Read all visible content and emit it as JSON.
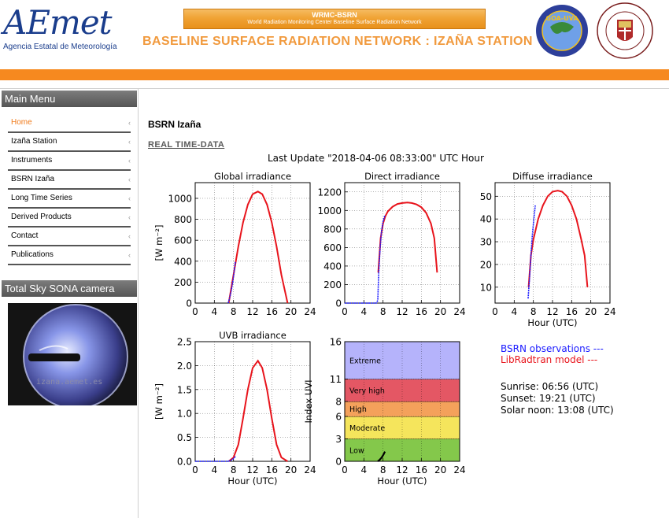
{
  "header": {
    "logo_text": "AEmet",
    "logo_subtitle": "Agencia Estatal de Meteorología",
    "banner_title": "WRMC-BSRN",
    "banner_subtitle": "World Radiation Monitoring Center  Baseline Surface Radiation Network",
    "site_title": "BASELINE SURFACE RADIATION NETWORK : IZAÑA STATION",
    "seal1_text": "GOA-UVA",
    "seal2_text": "SAPIENTIA AEDIFICAVIT SIBI DOMUM"
  },
  "sidebar": {
    "menu_title": "Main Menu",
    "items": [
      {
        "label": "Home",
        "active": true
      },
      {
        "label": "Izaña Station"
      },
      {
        "label": "Instruments"
      },
      {
        "label": "BSRN Izaña"
      },
      {
        "label": "Long Time Series"
      },
      {
        "label": "Derived Products"
      },
      {
        "label": "Contact"
      },
      {
        "label": "Publications"
      }
    ],
    "arrow": "‹",
    "camera_title": "Total Sky SONA camera",
    "camera_watermark": "izana.aemet.es"
  },
  "main": {
    "page_title": "BSRN Izaña",
    "realtime_link": "REAL TIME-DATA",
    "last_update": "Last Update \"2018-04-06 08:33:00\" UTC Hour"
  },
  "legend": {
    "observations": "BSRN observations ---",
    "model": "LibRadtran model ---"
  },
  "sun": {
    "sunrise": "Sunrise: 06:56 (UTC)",
    "sunset": "Sunset: 19:21 (UTC)",
    "solar_noon": "Solar noon: 13:08 (UTC)"
  },
  "colors": {
    "observations": "#1a1aff",
    "model": "#e8141c",
    "accent": "#f6891f"
  },
  "chart_data": [
    {
      "type": "line",
      "title": "Global irradiance",
      "xlabel": "",
      "ylabel": "[W m⁻²]",
      "xlim": [
        0,
        24
      ],
      "ylim": [
        0,
        1150
      ],
      "xticks": [
        0,
        4,
        8,
        12,
        16,
        20,
        24
      ],
      "yticks": [
        0,
        200,
        400,
        600,
        800,
        1000
      ],
      "series": [
        {
          "name": "LibRadtran model",
          "x": [
            7.0,
            8,
            9,
            10,
            11,
            12,
            13.1,
            14,
            15,
            16,
            17,
            18,
            19.3
          ],
          "y": [
            0,
            270,
            540,
            770,
            940,
            1040,
            1065,
            1040,
            940,
            770,
            540,
            270,
            0
          ]
        },
        {
          "name": "BSRN observations",
          "x": [
            6.9,
            7.2,
            7.5,
            7.8,
            8.1,
            8.4
          ],
          "y": [
            0,
            50,
            110,
            190,
            290,
            400
          ]
        }
      ]
    },
    {
      "type": "line",
      "title": "Direct irradiance",
      "xlabel": "",
      "ylabel": "",
      "xlim": [
        0,
        24
      ],
      "ylim": [
        0,
        1300
      ],
      "xticks": [
        0,
        4,
        8,
        12,
        16,
        20,
        24
      ],
      "yticks": [
        0,
        200,
        400,
        600,
        800,
        1000,
        1200
      ],
      "series": [
        {
          "name": "LibRadtran model",
          "x": [
            7.0,
            7.5,
            8.0,
            8.5,
            9,
            10,
            11,
            12,
            13.1,
            14,
            15,
            16,
            17,
            18,
            18.7,
            19.3
          ],
          "y": [
            330,
            700,
            860,
            940,
            990,
            1040,
            1070,
            1080,
            1085,
            1080,
            1065,
            1035,
            975,
            860,
            700,
            330
          ]
        },
        {
          "name": "BSRN observations",
          "x": [
            0,
            6.6,
            6.9,
            7.1,
            7.4,
            7.7,
            8.0,
            8.4
          ],
          "y": [
            0,
            0,
            30,
            330,
            600,
            780,
            880,
            950
          ]
        }
      ]
    },
    {
      "type": "line",
      "title": "Diffuse irradiance",
      "xlabel": "Hour (UTC)",
      "ylabel": "",
      "xlim": [
        0,
        24
      ],
      "ylim": [
        3,
        56
      ],
      "xticks": [
        0,
        4,
        8,
        12,
        16,
        20,
        24
      ],
      "yticks": [
        10,
        20,
        30,
        40,
        50
      ],
      "series": [
        {
          "name": "LibRadtran model",
          "x": [
            7.0,
            7.5,
            8,
            9,
            10,
            11,
            12,
            13.1,
            14,
            15,
            16,
            17,
            18,
            18.7,
            19.3
          ],
          "y": [
            10,
            24,
            31,
            40,
            46,
            50,
            52,
            52.5,
            52,
            50,
            46,
            40,
            31,
            24,
            10
          ]
        },
        {
          "name": "BSRN observations",
          "x": [
            6.9,
            7.2,
            7.5,
            7.8,
            8.1,
            8.4
          ],
          "y": [
            5,
            14,
            24,
            33,
            40,
            46
          ]
        }
      ]
    },
    {
      "type": "line",
      "title": "UVB irradiance",
      "xlabel": "Hour (UTC)",
      "ylabel": "[W m⁻²]",
      "xlim": [
        0,
        24
      ],
      "ylim": [
        0,
        2.5
      ],
      "xticks": [
        0,
        4,
        8,
        12,
        16,
        20,
        24
      ],
      "yticks": [
        0.0,
        0.5,
        1.0,
        1.5,
        2.0,
        2.5
      ],
      "series": [
        {
          "name": "LibRadtran model",
          "x": [
            7.0,
            8,
            9,
            10,
            11,
            12,
            13.1,
            14,
            15,
            16,
            17,
            18,
            19.3
          ],
          "y": [
            0,
            0.08,
            0.35,
            0.9,
            1.5,
            1.95,
            2.1,
            1.95,
            1.5,
            0.9,
            0.35,
            0.08,
            0
          ]
        },
        {
          "name": "BSRN observations",
          "x": [
            0,
            6.9,
            7.4,
            7.9,
            8.4
          ],
          "y": [
            0,
            0,
            0.02,
            0.05,
            0.1
          ]
        }
      ]
    },
    {
      "type": "line",
      "title": "",
      "xlabel": "Hour (UTC)",
      "ylabel": "Index UVI",
      "xlim": [
        0,
        24
      ],
      "ylim": [
        0,
        16
      ],
      "xticks": [
        0,
        4,
        8,
        12,
        16,
        20,
        24
      ],
      "yticks": [
        0,
        3,
        6,
        8,
        11,
        16
      ],
      "bands": [
        {
          "label": "Low",
          "from": 0,
          "to": 3,
          "color": "#84c84b"
        },
        {
          "label": "Moderate",
          "from": 3,
          "to": 6,
          "color": "#f5e55c"
        },
        {
          "label": "High",
          "from": 6,
          "to": 8,
          "color": "#f4a15b"
        },
        {
          "label": "Very high",
          "from": 8,
          "to": 11,
          "color": "#e45764"
        },
        {
          "label": "Extreme",
          "from": 11,
          "to": 16,
          "color": "#b5b3fb"
        }
      ],
      "series": [
        {
          "name": "UVI",
          "x": [
            6.9,
            7.3,
            7.7,
            8.1,
            8.4
          ],
          "y": [
            0,
            0.2,
            0.5,
            0.9,
            1.3
          ]
        }
      ]
    }
  ]
}
